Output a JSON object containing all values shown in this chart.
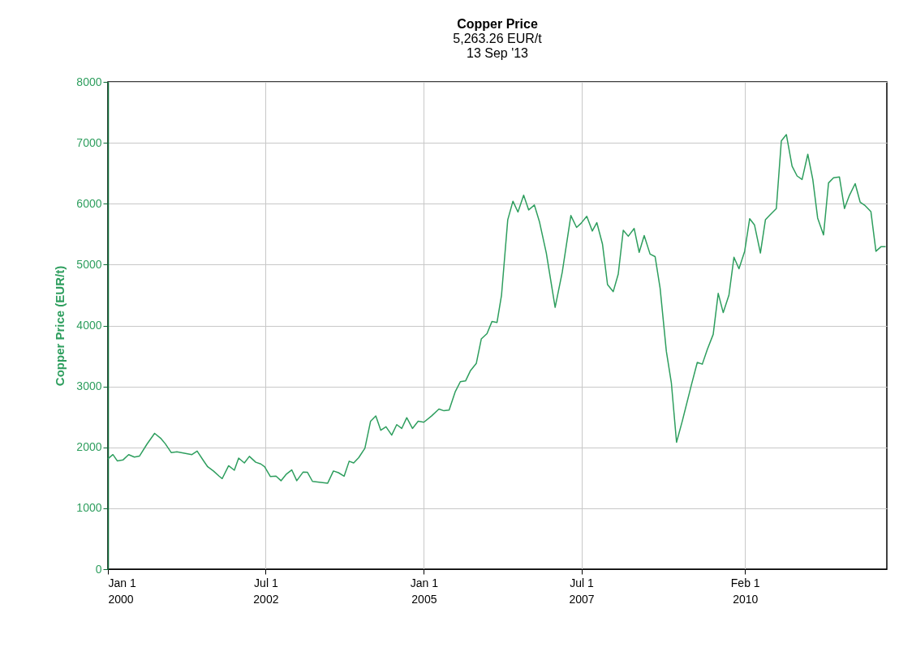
{
  "chart_data": {
    "type": "line",
    "title": "Copper Price",
    "subtitle": "5,263.26 EUR/t\n13 Sep '13",
    "ylabel": "Copper Price (EUR/t)",
    "x": [
      "2000-01-01",
      "2000-01-30",
      "2000-02-24",
      "2000-03-29",
      "2000-04-30",
      "2000-06-02",
      "2000-07-02",
      "2000-08-14",
      "2000-09-27",
      "2000-11-03",
      "2000-11-28",
      "2001-01-01",
      "2001-02-03",
      "2001-05-01",
      "2001-05-31",
      "2001-07-06",
      "2001-07-31",
      "2001-09-02",
      "2001-10-05",
      "2001-10-23",
      "2001-11-29",
      "2002-01-01",
      "2002-01-26",
      "2002-02-28",
      "2002-03-29",
      "2002-05-05",
      "2002-06-03",
      "2002-06-25",
      "2002-07-28",
      "2002-08-30",
      "2002-09-28",
      "2002-10-27",
      "2002-11-29",
      "2002-12-28",
      "2003-02-03",
      "2003-02-28",
      "2003-03-29",
      "2003-06-25",
      "2003-07-28",
      "2003-08-26",
      "2003-09-28",
      "2003-10-27",
      "2003-11-22",
      "2003-12-21",
      "2004-01-26",
      "2004-02-28",
      "2004-03-29",
      "2004-04-27",
      "2004-05-27",
      "2004-06-29",
      "2004-07-28",
      "2004-08-26",
      "2004-09-24",
      "2004-10-27",
      "2004-11-29",
      "2005-01-01",
      "2005-02-14",
      "2005-03-29",
      "2005-04-27",
      "2005-05-27",
      "2005-07-02",
      "2005-07-31",
      "2005-08-30",
      "2005-09-28",
      "2005-10-31",
      "2005-11-29",
      "2006-01-01",
      "2006-01-30",
      "2006-02-28",
      "2006-03-26",
      "2006-05-01",
      "2006-05-31",
      "2006-06-29",
      "2006-08-01",
      "2006-08-30",
      "2006-10-02",
      "2006-10-31",
      "2006-12-10",
      "2007-01-30",
      "2007-03-12",
      "2007-05-01",
      "2007-06-03",
      "2007-06-29",
      "2007-08-01",
      "2007-09-02",
      "2007-09-28",
      "2007-10-31",
      "2007-11-29",
      "2008-01-01",
      "2008-01-30",
      "2008-02-28",
      "2008-03-28",
      "2008-05-01",
      "2008-05-30",
      "2008-06-28",
      "2008-08-01",
      "2008-08-30",
      "2008-09-28",
      "2008-11-03",
      "2008-12-02",
      "2009-01-01",
      "2009-02-03",
      "2009-03-26",
      "2009-05-01",
      "2009-05-30",
      "2009-06-28",
      "2009-08-01",
      "2009-08-30",
      "2009-09-28",
      "2009-10-31",
      "2009-11-29",
      "2009-12-28",
      "2010-01-30",
      "2010-02-28",
      "2010-03-28",
      "2010-05-01",
      "2010-05-30",
      "2010-06-28",
      "2010-08-01",
      "2010-08-30",
      "2010-09-28",
      "2010-10-31",
      "2010-11-29",
      "2010-12-28",
      "2011-01-30",
      "2011-02-28",
      "2011-03-28",
      "2011-05-01",
      "2011-05-30",
      "2011-06-28",
      "2011-08-01",
      "2011-08-30",
      "2011-09-28",
      "2011-10-31",
      "2011-11-29",
      "2011-12-28",
      "2012-01-30",
      "2012-02-28",
      "2012-03-28",
      "2012-04-24"
    ],
    "series": [
      {
        "color": "#2e9e5e",
        "values": [
          1812,
          1881,
          1778,
          1795,
          1881,
          1841,
          1858,
          2053,
          2230,
          2144,
          2058,
          1915,
          1927,
          1881,
          1938,
          1784,
          1681,
          1612,
          1527,
          1487,
          1698,
          1624,
          1824,
          1744,
          1852,
          1755,
          1727,
          1681,
          1521,
          1527,
          1452,
          1555,
          1630,
          1452,
          1595,
          1590,
          1441,
          1412,
          1612,
          1584,
          1527,
          1772,
          1744,
          1830,
          1984,
          2430,
          2516,
          2281,
          2338,
          2201,
          2373,
          2310,
          2487,
          2310,
          2430,
          2413,
          2514,
          2629,
          2601,
          2612,
          2917,
          3078,
          3090,
          3262,
          3377,
          3780,
          3867,
          4068,
          4051,
          4499,
          5736,
          6041,
          5863,
          6139,
          5898,
          5978,
          5708,
          5190,
          4298,
          4873,
          5806,
          5610,
          5679,
          5794,
          5552,
          5690,
          5334,
          4672,
          4557,
          4845,
          5564,
          5466,
          5593,
          5201,
          5478,
          5173,
          5132,
          4614,
          3579,
          3061,
          2083,
          2428,
          3003,
          3395,
          3366,
          3608,
          3855,
          4528,
          4212,
          4499,
          5121,
          4931,
          5219,
          5754,
          5650,
          5190,
          5736,
          5823,
          5921,
          7031,
          7135,
          6617,
          6456,
          6398,
          6812,
          6398,
          5765,
          5489,
          6341,
          6427,
          6438,
          5921,
          6139,
          6329,
          6024,
          5967,
          5869,
          5219,
          5293,
          5293
        ]
      }
    ],
    "xlim": [
      "2000-01-01",
      "2012-05-01"
    ],
    "xticks": [
      {
        "value": "2000-01-01",
        "label": "Jan 1\n2000"
      },
      {
        "value": "2002-07-01",
        "label": "Jul 1\n2002"
      },
      {
        "value": "2005-01-01",
        "label": "Jan 1\n2005"
      },
      {
        "value": "2007-07-01",
        "label": "Jul 1\n2007"
      },
      {
        "value": "2010-02-01",
        "label": "Feb 1\n2010"
      }
    ],
    "ylim": [
      0,
      8000
    ],
    "yticks": [
      0,
      1000,
      2000,
      3000,
      4000,
      5000,
      6000,
      7000,
      8000
    ],
    "grid": true,
    "marker": "none",
    "line_style": "solid"
  }
}
